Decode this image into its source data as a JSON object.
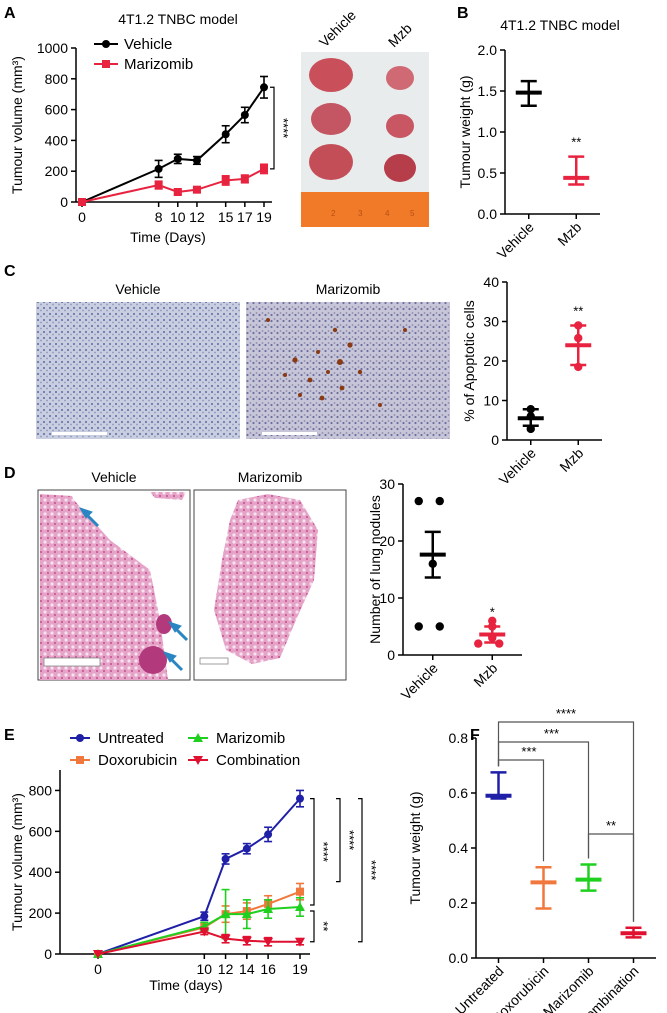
{
  "panels": {
    "A": {
      "letter": "A",
      "title": "4T1.2 TNBC model",
      "photo_labels": [
        "Vehicle",
        "Mzb"
      ],
      "ruler_labels": [
        "2",
        "3",
        "4",
        "5"
      ]
    },
    "B": {
      "letter": "B",
      "title": "4T1.2 TNBC model"
    },
    "C": {
      "letter": "C",
      "image_labels": [
        "Vehicle",
        "Marizomib"
      ]
    },
    "D": {
      "letter": "D",
      "image_labels": [
        "Vehicle",
        "Marizomib"
      ]
    },
    "E": {
      "letter": "E"
    },
    "F": {
      "letter": "F"
    }
  },
  "colors": {
    "black": "#000000",
    "red": "#e8233f",
    "blue": "#1f1fa8",
    "orange": "#f0783c",
    "green": "#1fd01f",
    "crimson": "#e01030"
  },
  "chart_data": [
    {
      "id": "A",
      "type": "line",
      "title": "4T1.2 TNBC model",
      "xlabel": "Time (Days)",
      "ylabel": "Tumour volume (mm³)",
      "x": [
        0,
        8,
        10,
        12,
        15,
        17,
        19
      ],
      "xticks": [
        0,
        8,
        10,
        12,
        15,
        17,
        19
      ],
      "ylim": [
        0,
        1000
      ],
      "yticks": [
        0,
        200,
        400,
        600,
        800,
        1000
      ],
      "series": [
        {
          "name": "Vehicle",
          "color": "#000000",
          "marker": "circle",
          "values": [
            0,
            215,
            280,
            270,
            440,
            565,
            745
          ],
          "errors": [
            0,
            55,
            30,
            25,
            55,
            50,
            70
          ]
        },
        {
          "name": "Marizomib",
          "color": "#e8233f",
          "marker": "square",
          "values": [
            0,
            110,
            65,
            80,
            140,
            150,
            215
          ],
          "errors": [
            0,
            25,
            15,
            15,
            30,
            25,
            30
          ]
        }
      ],
      "significance": [
        {
          "label": "****",
          "between": [
            "Vehicle",
            "Marizomib"
          ],
          "at_x": 19
        }
      ]
    },
    {
      "id": "B",
      "type": "scatter",
      "title": "4T1.2 TNBC model",
      "ylabel": "Tumour weight (g)",
      "categories": [
        "Vehicle",
        "Mzb"
      ],
      "ylim": [
        0,
        2.0
      ],
      "yticks": [
        "0.0",
        "0.5",
        "1.0",
        "1.5",
        "2.0"
      ],
      "groups": [
        {
          "name": "Vehicle",
          "color": "#000000",
          "mean": 1.48,
          "upper": 1.62,
          "lower": 1.32
        },
        {
          "name": "Mzb",
          "color": "#e8233f",
          "mean": 0.44,
          "upper": 0.7,
          "lower": 0.36,
          "sig": "**"
        }
      ]
    },
    {
      "id": "C",
      "type": "scatter",
      "ylabel": "% of Apoptotic cells",
      "categories": [
        "Vehicle",
        "Mzb"
      ],
      "ylim": [
        0,
        40
      ],
      "yticks": [
        "0",
        "10",
        "20",
        "30",
        "40"
      ],
      "groups": [
        {
          "name": "Vehicle",
          "color": "#000000",
          "mean": 5.5,
          "upper": 7.8,
          "lower": 3.6,
          "points": [
            7.8,
            6.0,
            2.8
          ]
        },
        {
          "name": "Mzb",
          "color": "#e8233f",
          "mean": 24.0,
          "upper": 29.0,
          "lower": 19.0,
          "points": [
            29.0,
            25.8,
            18.5
          ],
          "sig": "**"
        }
      ]
    },
    {
      "id": "D",
      "type": "scatter",
      "ylabel": "Number of lung nodules",
      "categories": [
        "Vehicle",
        "Mzb"
      ],
      "ylim": [
        0,
        30
      ],
      "yticks": [
        "0",
        "10",
        "20",
        "30"
      ],
      "groups": [
        {
          "name": "Vehicle",
          "color": "#000000",
          "mean": 17.6,
          "upper": 21.6,
          "lower": 13.6,
          "points": [
            27,
            27,
            16,
            5,
            5
          ]
        },
        {
          "name": "Mzb",
          "color": "#e8233f",
          "mean": 3.6,
          "upper": 5.0,
          "lower": 2.2,
          "points": [
            6,
            5,
            3,
            2,
            2
          ],
          "sig": "*"
        }
      ]
    },
    {
      "id": "E",
      "type": "line",
      "xlabel": "Time (days)",
      "ylabel": "Tumour volume (mm³)",
      "x": [
        0,
        10,
        12,
        14,
        16,
        19
      ],
      "xticks": [
        0,
        10,
        12,
        14,
        16,
        19
      ],
      "ylim": [
        0,
        900
      ],
      "yticks": [
        0,
        200,
        400,
        600,
        800
      ],
      "series": [
        {
          "name": "Untreated",
          "color": "#1f1fa8",
          "marker": "circle",
          "values": [
            0,
            185,
            465,
            515,
            585,
            760
          ],
          "errors": [
            0,
            20,
            25,
            25,
            35,
            40
          ]
        },
        {
          "name": "Doxorubicin",
          "color": "#f0783c",
          "marker": "square",
          "values": [
            0,
            130,
            195,
            210,
            245,
            305
          ],
          "errors": [
            0,
            20,
            40,
            40,
            40,
            40
          ]
        },
        {
          "name": "Marizomib",
          "color": "#1fd01f",
          "marker": "triangle",
          "values": [
            0,
            135,
            195,
            195,
            220,
            230
          ],
          "errors": [
            0,
            20,
            120,
            70,
            45,
            45
          ]
        },
        {
          "name": "Combination",
          "color": "#e01030",
          "marker": "triangle-down",
          "values": [
            0,
            110,
            75,
            65,
            60,
            60
          ],
          "errors": [
            0,
            15,
            20,
            20,
            20,
            15
          ]
        }
      ],
      "significance": [
        {
          "label": "****",
          "between": [
            "Untreated",
            "Marizomib"
          ]
        },
        {
          "label": "**",
          "between": [
            "Marizomib",
            "Combination"
          ]
        },
        {
          "label": "****",
          "between": [
            "Untreated",
            "Doxorubicin"
          ]
        },
        {
          "label": "****",
          "between": [
            "Untreated",
            "Combination"
          ]
        }
      ]
    },
    {
      "id": "F",
      "type": "scatter",
      "ylabel": "Tumour weight (g)",
      "categories": [
        "Untreated",
        "Doxorubicin",
        "Marizomib",
        "Combination"
      ],
      "ylim": [
        0,
        0.8
      ],
      "yticks": [
        "0.0",
        "0.2",
        "0.4",
        "0.6",
        "0.8"
      ],
      "groups": [
        {
          "name": "Untreated",
          "color": "#1f1fa8",
          "mean": 0.59,
          "upper": 0.675,
          "lower": 0.58
        },
        {
          "name": "Doxorubicin",
          "color": "#f0783c",
          "mean": 0.275,
          "upper": 0.33,
          "lower": 0.18
        },
        {
          "name": "Marizomib",
          "color": "#1fd01f",
          "mean": 0.285,
          "upper": 0.34,
          "lower": 0.245
        },
        {
          "name": "Combination",
          "color": "#e01030",
          "mean": 0.09,
          "upper": 0.11,
          "lower": 0.075
        }
      ],
      "significance": [
        {
          "label": "****",
          "between": [
            "Untreated",
            "Combination"
          ]
        },
        {
          "label": "***",
          "between": [
            "Untreated",
            "Marizomib"
          ]
        },
        {
          "label": "***",
          "between": [
            "Untreated",
            "Doxorubicin"
          ]
        },
        {
          "label": "**",
          "between": [
            "Marizomib",
            "Combination"
          ]
        }
      ]
    }
  ]
}
